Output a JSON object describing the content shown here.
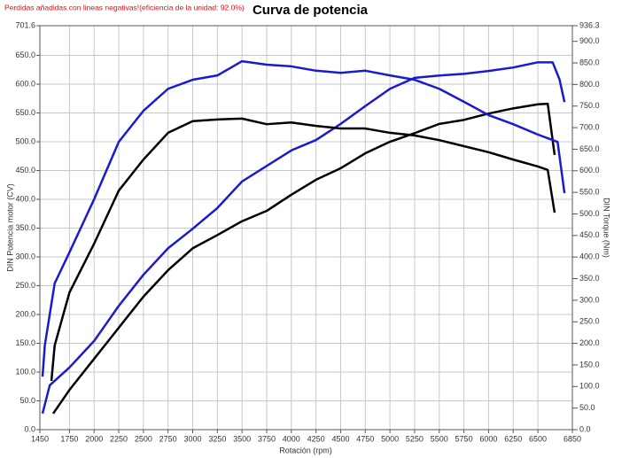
{
  "chart_data": {
    "type": "line",
    "title": "Curva de potencia",
    "note": "Perdidas añadidas con lineas negativas!(eficiencia de la unidad: 92.0%)",
    "x_label": "Rotación (rpm)",
    "y_label": "DIN Potencia motor (CV)",
    "y2_label": "DIN Torque (Nm)",
    "xlim": [
      1450,
      6850
    ],
    "xticks": [
      1450,
      1750,
      2000,
      2250,
      2500,
      2750,
      3000,
      3250,
      3500,
      3750,
      4000,
      4250,
      4500,
      4750,
      5000,
      5250,
      5500,
      5750,
      6000,
      6250,
      6500,
      6850
    ],
    "ylim": [
      0,
      701.6
    ],
    "yticks": [
      {
        "value": 0,
        "label": "0.0"
      },
      {
        "value": 50,
        "label": "50.0"
      },
      {
        "value": 100,
        "label": "100.0"
      },
      {
        "value": 150,
        "label": "150.0"
      },
      {
        "value": 200,
        "label": "200.0"
      },
      {
        "value": 250,
        "label": "250.0"
      },
      {
        "value": 300,
        "label": "300.0"
      },
      {
        "value": 350,
        "label": "350.0"
      },
      {
        "value": 400,
        "label": "400.0"
      },
      {
        "value": 450,
        "label": "450.0"
      },
      {
        "value": 500,
        "label": "500.0"
      },
      {
        "value": 550,
        "label": "550.0"
      },
      {
        "value": 600,
        "label": "600.0"
      },
      {
        "value": 650,
        "label": "650.0"
      },
      701.6
    ],
    "y2lim": [
      0,
      936.3
    ],
    "y2ticks": [
      {
        "value": 0,
        "label": "0.0"
      },
      {
        "value": 50,
        "label": "50.0"
      },
      {
        "value": 100,
        "label": "100.0"
      },
      {
        "value": 150,
        "label": "150.0"
      },
      {
        "value": 200,
        "label": "200.0"
      },
      {
        "value": 250,
        "label": "250.0"
      },
      {
        "value": 300,
        "label": "300.0"
      },
      {
        "value": 350,
        "label": "350.0"
      },
      {
        "value": 400,
        "label": "400.0"
      },
      {
        "value": 450,
        "label": "450.0"
      },
      {
        "value": 500,
        "label": "500.0"
      },
      {
        "value": 550,
        "label": "550.0"
      },
      {
        "value": 600,
        "label": "600.0"
      },
      {
        "value": 650,
        "label": "650.0"
      },
      {
        "value": 700,
        "label": "700.0"
      },
      {
        "value": 750,
        "label": "750.0"
      },
      {
        "value": 800,
        "label": "800.0"
      },
      {
        "value": 850,
        "label": "850.0"
      },
      {
        "value": 900,
        "label": "900.0"
      },
      936.3
    ],
    "grid": true,
    "series": [
      {
        "color": "#1a1ad0",
        "axis": "y",
        "x": [
          1477,
          1550,
          1750,
          2000,
          2250,
          2500,
          2750,
          3000,
          3250,
          3500,
          3750,
          4000,
          4250,
          4500,
          4750,
          5000,
          5250,
          5500,
          5750,
          6000,
          6250,
          6500,
          6650,
          6720,
          6770
        ],
        "values": [
          28,
          77,
          108,
          154,
          215,
          269,
          315,
          349,
          385,
          431,
          458,
          485,
          503,
          531,
          562,
          592,
          611,
          615,
          618,
          623,
          629,
          638,
          638,
          608,
          569
        ]
      },
      {
        "color": "#000000",
        "axis": "y",
        "x": [
          1585,
          1750,
          2000,
          2250,
          2500,
          2750,
          3000,
          3250,
          3500,
          3750,
          4000,
          4250,
          4500,
          4750,
          5000,
          5250,
          5500,
          5750,
          6000,
          6250,
          6500,
          6600,
          6670
        ],
        "values": [
          28,
          69,
          123,
          177,
          231,
          277,
          315,
          338,
          362,
          380,
          408,
          434,
          454,
          480,
          500,
          515,
          531,
          538,
          549,
          558,
          565,
          566,
          477
        ]
      },
      {
        "color": "#1a1ad0",
        "axis": "y2",
        "x": [
          1477,
          1500,
          1600,
          1750,
          2000,
          2250,
          2500,
          2750,
          3000,
          3250,
          3500,
          3750,
          4000,
          4250,
          4500,
          4750,
          5000,
          5250,
          5500,
          5750,
          6000,
          6250,
          6500,
          6700,
          6770
        ],
        "values": [
          123,
          195,
          339,
          411,
          534,
          667,
          739,
          790,
          811,
          821,
          854,
          846,
          842,
          832,
          827,
          832,
          821,
          811,
          790,
          760,
          729,
          708,
          684,
          667,
          548
        ]
      },
      {
        "color": "#000000",
        "axis": "y2",
        "x": [
          1567,
          1600,
          1750,
          2000,
          2250,
          2500,
          2750,
          3000,
          3250,
          3500,
          3750,
          4000,
          4250,
          4500,
          4750,
          5000,
          5250,
          5500,
          5750,
          6000,
          6250,
          6500,
          6600,
          6670
        ],
        "values": [
          113,
          195,
          318,
          431,
          554,
          626,
          688,
          715,
          719,
          721,
          708,
          712,
          704,
          698,
          698,
          688,
          682,
          671,
          657,
          643,
          626,
          610,
          602,
          503
        ]
      }
    ]
  }
}
